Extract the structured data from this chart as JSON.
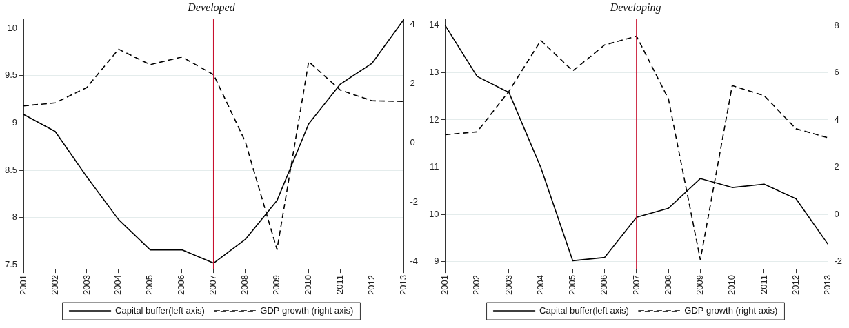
{
  "chart_data": [
    {
      "type": "line",
      "title": "Developed",
      "categories": [
        "2001",
        "2002",
        "2003",
        "2004",
        "2005",
        "2006",
        "2007",
        "2008",
        "2009",
        "2010",
        "2011",
        "2012",
        "2013"
      ],
      "series": [
        {
          "name": "Capital buffer(left axis)",
          "color": "#000000",
          "line_style": "solid",
          "values": [
            9.09,
            8.91,
            8.43,
            7.98,
            7.66,
            7.66,
            7.52,
            7.77,
            8.18,
            8.99,
            9.41,
            9.63,
            10.09
          ]
        },
        {
          "name": "GDP growth (right axis)",
          "color": "#000000",
          "line_style": "dashed",
          "axis": "y2",
          "values": [
            1.26,
            1.36,
            1.88,
            3.17,
            2.65,
            2.91,
            2.31,
            0.05,
            -3.59,
            2.75,
            1.79,
            1.43,
            1.41
          ]
        }
      ],
      "ylim": [
        7.46,
        10.1
      ],
      "yticks": [
        7.5,
        8,
        8.5,
        9,
        9.5,
        10
      ],
      "y2lim": [
        -4.24,
        4.2
      ],
      "y2ticks": [
        -4,
        -2,
        0,
        2,
        4
      ],
      "ref_lines": [
        {
          "axis": "x",
          "value": "2007",
          "color": "#c8102e"
        }
      ],
      "grid": "y",
      "legend": "bottom",
      "marker": "none"
    },
    {
      "type": "line",
      "title": "Developing",
      "categories": [
        "2001",
        "2002",
        "2003",
        "2004",
        "2005",
        "2006",
        "2007",
        "2008",
        "2009",
        "2010",
        "2011",
        "2012",
        "2013"
      ],
      "series": [
        {
          "name": "Capital buffer(left axis)",
          "color": "#000000",
          "line_style": "solid",
          "values": [
            14.0,
            12.92,
            12.58,
            10.99,
            9.02,
            9.09,
            9.94,
            10.13,
            10.76,
            10.57,
            10.64,
            10.33,
            9.37
          ]
        },
        {
          "name": "GDP growth (right axis)",
          "color": "#000000",
          "line_style": "dashed",
          "axis": "y2",
          "values": [
            3.38,
            3.5,
            5.22,
            7.37,
            6.08,
            7.18,
            7.55,
            4.89,
            -1.92,
            5.46,
            5.03,
            3.63,
            3.25
          ]
        }
      ],
      "ylim": [
        8.85,
        14.14
      ],
      "yticks": [
        9,
        10,
        11,
        12,
        13,
        14
      ],
      "y2lim": [
        -2.3,
        8.29
      ],
      "y2ticks": [
        -2,
        0,
        2,
        4,
        6,
        8
      ],
      "ref_lines": [
        {
          "axis": "x",
          "value": "2007",
          "color": "#c8102e"
        }
      ],
      "grid": "y",
      "legend": "bottom",
      "marker": "none"
    }
  ]
}
